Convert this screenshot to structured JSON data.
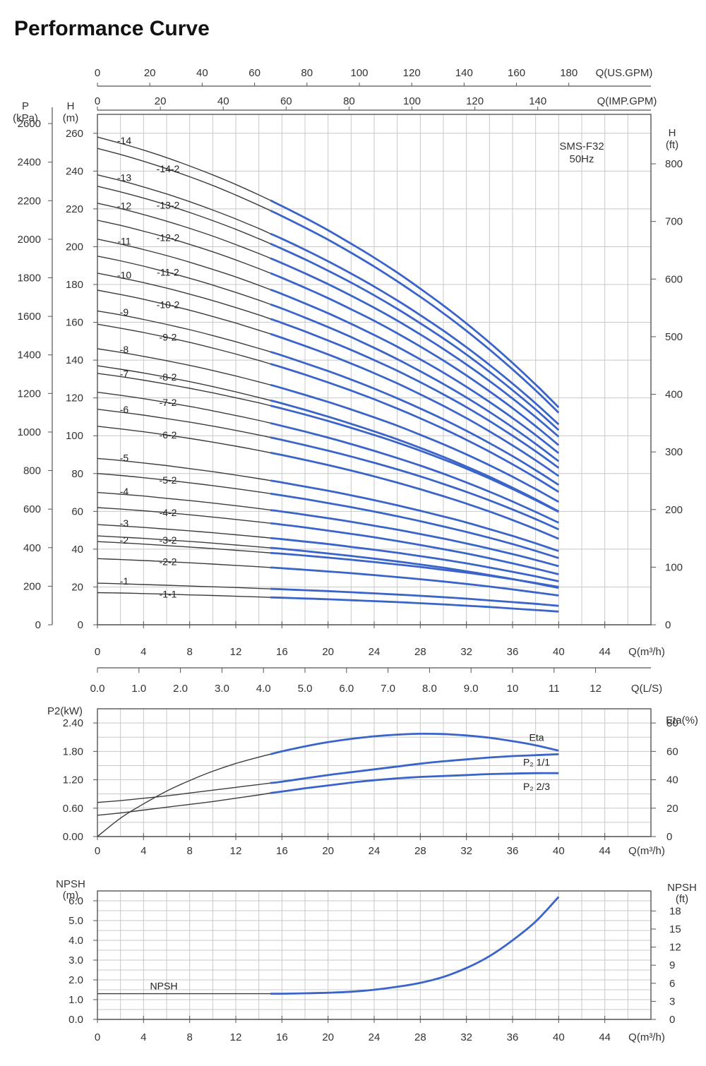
{
  "title": "Performance Curve",
  "colors": {
    "blue": "#3a64c8",
    "gray": "#3c3c3c",
    "grid": "#c8c8c8",
    "axis": "#555555"
  },
  "chart_data": [
    {
      "id": "head",
      "type": "line",
      "model": "SMS-F32",
      "frequency": "50Hz",
      "x_ticks": [
        "0",
        "4",
        "8",
        "12",
        "16",
        "20",
        "24",
        "28",
        "32",
        "36",
        "40",
        "44"
      ],
      "x_unit": "Q(m³/h)",
      "xlim": [
        0,
        48
      ],
      "left_axis_label": [
        "H",
        "(m)"
      ],
      "left_ticks": [
        "0",
        "20",
        "40",
        "60",
        "80",
        "100",
        "120",
        "140",
        "160",
        "180",
        "200",
        "220",
        "240",
        "260"
      ],
      "ylim": [
        0,
        270
      ],
      "p_axis_label": [
        "P",
        "(kPa)"
      ],
      "p_ticks": [
        "0",
        "200",
        "400",
        "600",
        "800",
        "1000",
        "1200",
        "1400",
        "1600",
        "1800",
        "2000",
        "2200",
        "2400",
        "2600"
      ],
      "right_axis_label": [
        "H",
        "(ft)"
      ],
      "right_ticks": [
        "0",
        "100",
        "200",
        "300",
        "400",
        "500",
        "600",
        "700",
        "800"
      ],
      "gpm_us_label": "Q(US.GPM)",
      "gpm_us_ticks": [
        "0",
        "20",
        "40",
        "60",
        "80",
        "100",
        "120",
        "140",
        "160",
        "180"
      ],
      "gpm_imp_label": "Q(IMP.GPM)",
      "gpm_imp_ticks": [
        "0",
        "20",
        "40",
        "60",
        "80",
        "100",
        "120",
        "140"
      ],
      "ls_label": "Q(L/S)",
      "ls_ticks": [
        "0.0",
        "1.0",
        "2.0",
        "3.0",
        "4.0",
        "5.0",
        "6.0",
        "7.0",
        "8.0",
        "9.0",
        "10",
        "11",
        "12"
      ],
      "x": [
        0,
        2,
        4,
        6,
        8,
        10,
        12,
        14,
        15,
        16,
        18,
        20,
        22,
        24,
        26,
        28,
        30,
        32,
        34,
        36,
        38,
        40
      ],
      "blue_from": 15,
      "series": [
        {
          "name": "-1",
          "values": [
            22,
            21.7,
            21.3,
            20.9,
            20.5,
            20.1,
            19.7,
            19.2,
            19,
            18.8,
            18.3,
            17.8,
            17.2,
            16.6,
            16,
            15.3,
            14.6,
            13.8,
            12.9,
            12,
            11.1,
            10
          ]
        },
        {
          "name": "-1-1",
          "values": [
            17,
            16.8,
            16.5,
            16.2,
            15.8,
            15.5,
            15.1,
            14.7,
            14.5,
            14.3,
            13.9,
            13.5,
            13,
            12.5,
            12,
            11.4,
            10.8,
            10.1,
            9.4,
            8.6,
            7.8,
            7
          ]
        },
        {
          "name": "-2",
          "values": [
            44,
            43.4,
            42.7,
            41.9,
            41.1,
            40.3,
            39.4,
            38.5,
            38,
            37.6,
            36.6,
            35.5,
            34.4,
            33.2,
            31.9,
            30.6,
            29.1,
            27.6,
            25.9,
            24.1,
            22.1,
            20
          ]
        },
        {
          "name": "-2-2",
          "values": [
            35,
            34.5,
            34,
            33.4,
            32.8,
            32.1,
            31.4,
            30.7,
            30.3,
            29.9,
            29.1,
            28.2,
            27.3,
            26.3,
            25.2,
            24.1,
            22.9,
            21.6,
            20.2,
            18.7,
            17.1,
            15.5
          ]
        },
        {
          "name": "-3",
          "values": [
            53,
            52.3,
            51.5,
            50.6,
            49.7,
            48.7,
            47.6,
            46.5,
            45.9,
            45.3,
            44,
            42.7,
            41.2,
            39.7,
            38.1,
            36.3,
            34.5,
            32.5,
            30.3,
            28,
            25.6,
            23
          ]
        },
        {
          "name": "-3-2",
          "values": [
            47,
            46.4,
            45.7,
            44.9,
            44.1,
            43.2,
            42.2,
            41.2,
            40.7,
            40.2,
            39,
            37.7,
            36.4,
            35,
            33.5,
            31.9,
            30.2,
            28.3,
            26.3,
            24.2,
            21.9,
            19.5
          ]
        },
        {
          "name": "-4",
          "values": [
            70,
            69.1,
            68.1,
            66.9,
            65.7,
            64.4,
            63,
            61.5,
            60.7,
            59.9,
            58.2,
            56.4,
            54.5,
            52.4,
            50.3,
            48,
            45.6,
            43,
            40.3,
            37.4,
            34.3,
            31
          ]
        },
        {
          "name": "-4-2",
          "values": [
            62,
            61.2,
            60.3,
            59.3,
            58.2,
            57,
            55.7,
            54.4,
            53.7,
            53,
            51.5,
            49.8,
            48.1,
            46.3,
            44.3,
            42.2,
            40,
            37.7,
            35.2,
            32.5,
            29.7,
            26.7
          ]
        },
        {
          "name": "-5",
          "values": [
            88,
            86.9,
            85.6,
            84.2,
            82.6,
            81,
            79.2,
            77.3,
            76.3,
            75.3,
            73.1,
            70.9,
            68.5,
            65.9,
            63.2,
            60.3,
            57.3,
            54.1,
            50.6,
            47,
            43.1,
            39
          ]
        },
        {
          "name": "-5-2",
          "values": [
            80,
            79,
            77.8,
            76.5,
            75.1,
            73.6,
            72,
            70.3,
            69.4,
            68.4,
            66.5,
            64.4,
            62.2,
            59.9,
            57.4,
            54.8,
            52,
            49.1,
            46,
            42.7,
            39.1,
            35.3
          ]
        },
        {
          "name": "-6",
          "values": [
            114,
            112.5,
            110.9,
            109.1,
            107.2,
            105.1,
            102.8,
            100.4,
            99.1,
            97.8,
            95,
            92.1,
            89,
            85.7,
            82.2,
            78.5,
            74.5,
            70.3,
            65.8,
            61,
            55.9,
            50.5
          ]
        },
        {
          "name": "-6-2",
          "values": [
            105,
            103.6,
            102.1,
            100.4,
            98.6,
            96.6,
            94.5,
            92.2,
            91,
            89.8,
            87.2,
            84.5,
            81.6,
            78.5,
            75.2,
            71.7,
            68,
            64.1,
            59.9,
            55.4,
            50.6,
            45.5
          ]
        },
        {
          "name": "-7",
          "values": [
            133,
            131.3,
            129.4,
            127.3,
            125.1,
            122.7,
            120.1,
            117.4,
            115.9,
            114.4,
            111.2,
            107.8,
            104.2,
            100.4,
            96.4,
            92.1,
            87.5,
            82.6,
            77.4,
            71.8,
            65.9,
            59.7
          ]
        },
        {
          "name": "-7-2",
          "values": [
            123,
            121.4,
            119.6,
            117.6,
            115.5,
            113.2,
            110.7,
            108.1,
            106.7,
            105.2,
            102.2,
            99,
            95.6,
            92,
            88.2,
            84.2,
            79.9,
            75.3,
            70.4,
            65.2,
            59.7,
            54
          ]
        },
        {
          "name": "-8",
          "values": [
            146,
            144.1,
            142,
            139.7,
            137.2,
            134.5,
            131.6,
            128.5,
            126.9,
            125.2,
            121.6,
            117.9,
            113.9,
            109.7,
            105.3,
            100.5,
            95.5,
            90.1,
            84.4,
            78.3,
            71.8,
            65
          ]
        },
        {
          "name": "-8-2",
          "values": [
            137,
            135.2,
            133.2,
            131,
            128.6,
            126,
            123.2,
            120.2,
            118.7,
            117.1,
            113.7,
            110.1,
            106.3,
            102.3,
            98.1,
            93.6,
            88.8,
            83.7,
            78.3,
            72.5,
            66.4,
            60
          ]
        },
        {
          "name": "-9",
          "values": [
            166,
            163.9,
            161.5,
            158.9,
            156.1,
            153,
            149.7,
            146.2,
            144.4,
            142.5,
            138.4,
            134.2,
            129.7,
            124.9,
            119.8,
            114.4,
            108.7,
            102.6,
            96.1,
            89.2,
            81.8,
            74
          ]
        },
        {
          "name": "-9-2",
          "values": [
            159,
            156.9,
            154.6,
            152.1,
            149.4,
            146.4,
            143.2,
            139.8,
            138,
            136.2,
            132.3,
            128.2,
            123.9,
            119.3,
            114.4,
            109.2,
            103.7,
            97.8,
            91.6,
            84.9,
            77.8,
            70.3
          ]
        },
        {
          "name": "-10",
          "values": [
            186,
            183.6,
            181,
            178.1,
            174.9,
            171.5,
            167.8,
            163.9,
            161.8,
            159.7,
            155.2,
            150.4,
            145.4,
            140,
            134.4,
            128.3,
            121.9,
            115.1,
            107.8,
            100,
            91.8,
            83
          ]
        },
        {
          "name": "-10-2",
          "values": [
            177,
            174.7,
            172.2,
            169.4,
            166.4,
            163.1,
            159.6,
            155.8,
            153.9,
            151.8,
            147.5,
            143,
            138.2,
            133.1,
            127.7,
            121.9,
            115.8,
            109.3,
            102.3,
            94.9,
            87,
            78.7
          ]
        },
        {
          "name": "-11",
          "values": [
            204,
            201.4,
            198.5,
            195.3,
            191.8,
            188,
            184,
            179.6,
            177.3,
            175,
            170,
            164.8,
            159.2,
            153.3,
            147.1,
            140.4,
            133.4,
            125.9,
            117.9,
            109.4,
            100.4,
            90.8
          ]
        },
        {
          "name": "-11-2",
          "values": [
            195,
            192.5,
            189.7,
            186.6,
            183.3,
            179.7,
            175.8,
            171.7,
            169.5,
            167.3,
            162.5,
            157.5,
            152.2,
            146.5,
            140.5,
            134.1,
            127.4,
            120.2,
            112.6,
            104.4,
            95.7,
            86.5
          ]
        },
        {
          "name": "-12",
          "values": [
            223,
            220.2,
            217,
            213.5,
            209.7,
            205.6,
            201.1,
            196.4,
            193.9,
            191.3,
            185.9,
            180.2,
            174.1,
            167.7,
            160.9,
            153.6,
            145.9,
            137.7,
            129,
            119.7,
            109.9,
            99.5
          ]
        },
        {
          "name": "-12-2",
          "values": [
            214,
            211.3,
            208.2,
            204.9,
            201.2,
            197.3,
            193,
            188.4,
            186,
            183.5,
            178.3,
            172.8,
            166.9,
            160.8,
            154.2,
            147.2,
            139.8,
            131.9,
            123.5,
            114.6,
            105.1,
            95
          ]
        },
        {
          "name": "-13",
          "values": [
            238,
            235,
            231.6,
            227.9,
            223.8,
            219.4,
            214.7,
            209.6,
            206.9,
            204.2,
            198.4,
            192.3,
            185.8,
            178.9,
            171.6,
            163.8,
            155.6,
            146.8,
            137.5,
            127.6,
            117.1,
            106
          ]
        },
        {
          "name": "-13-2",
          "values": [
            232,
            229,
            225.7,
            222.1,
            218.1,
            213.8,
            209.2,
            204.2,
            201.6,
            198.9,
            193.3,
            187.3,
            181,
            174.3,
            167.1,
            159.5,
            151.5,
            142.9,
            133.8,
            124.1,
            113.9,
            103
          ]
        },
        {
          "name": "-14",
          "values": [
            258,
            254.7,
            251.1,
            247.1,
            242.7,
            238,
            232.9,
            227.4,
            224.5,
            221.5,
            215.3,
            208.7,
            201.6,
            194.2,
            186.3,
            177.8,
            168.9,
            159.4,
            149.3,
            138.5,
            127.1,
            115
          ]
        },
        {
          "name": "-14-2",
          "values": [
            252,
            248.8,
            245.2,
            241.3,
            237,
            232.4,
            227.3,
            221.9,
            219.1,
            216.2,
            210.1,
            203.7,
            196.8,
            189.5,
            181.7,
            173.5,
            164.8,
            155.5,
            145.6,
            135.1,
            124,
            112.2
          ]
        }
      ]
    },
    {
      "id": "power",
      "type": "line",
      "left_axis_label": "P2(kW)",
      "left_ticks": [
        "0.00",
        "0.60",
        "1.20",
        "1.80",
        "2.40"
      ],
      "ylim_left": [
        0,
        2.7
      ],
      "right_axis_label": "Eta(%)",
      "right_ticks": [
        "0",
        "20",
        "40",
        "60",
        "80"
      ],
      "ylim_right": [
        0,
        90
      ],
      "x_ticks": [
        "0",
        "4",
        "8",
        "12",
        "16",
        "20",
        "24",
        "28",
        "32",
        "36",
        "40",
        "44"
      ],
      "x_unit": "Q(m³/h)",
      "xlim": [
        0,
        48
      ],
      "x": [
        0,
        2,
        4,
        6,
        8,
        10,
        12,
        14,
        15,
        16,
        18,
        20,
        22,
        24,
        26,
        28,
        30,
        32,
        34,
        36,
        38,
        40
      ],
      "blue_from": 15,
      "series": [
        {
          "name": "Eta",
          "axis": "right",
          "values": [
            0,
            13,
            23,
            32,
            39.5,
            46,
            51.5,
            56,
            58,
            60,
            63.5,
            66.5,
            68.8,
            70.6,
            71.8,
            72.4,
            72.2,
            71.2,
            69.6,
            67.2,
            64.3,
            60.5
          ]
        },
        {
          "name": "P₂ 1/1",
          "axis": "left",
          "values": [
            0.72,
            0.76,
            0.81,
            0.86,
            0.92,
            0.98,
            1.04,
            1.1,
            1.13,
            1.16,
            1.23,
            1.3,
            1.36,
            1.42,
            1.48,
            1.54,
            1.59,
            1.63,
            1.67,
            1.7,
            1.72,
            1.74
          ]
        },
        {
          "name": "P₂ 2/3",
          "axis": "left",
          "values": [
            0.45,
            0.5,
            0.56,
            0.62,
            0.68,
            0.74,
            0.81,
            0.88,
            0.92,
            0.95,
            1.02,
            1.08,
            1.14,
            1.19,
            1.23,
            1.26,
            1.28,
            1.3,
            1.32,
            1.33,
            1.34,
            1.34
          ]
        }
      ]
    },
    {
      "id": "npsh",
      "type": "line",
      "left_axis_label": [
        "NPSH",
        "(m)"
      ],
      "left_ticks": [
        "0.0",
        "1.0",
        "2.0",
        "3.0",
        "4.0",
        "5.0",
        "6.0"
      ],
      "ylim_left": [
        0,
        6.5
      ],
      "right_axis_label": [
        "NPSH",
        "(ft)"
      ],
      "right_ticks": [
        "0",
        "3",
        "6",
        "9",
        "12",
        "15",
        "18"
      ],
      "x_ticks": [
        "0",
        "4",
        "8",
        "12",
        "16",
        "20",
        "24",
        "28",
        "32",
        "36",
        "40",
        "44"
      ],
      "x_unit": "Q(m³/h)",
      "xlim": [
        0,
        48
      ],
      "x": [
        0,
        15,
        16,
        18,
        20,
        22,
        24,
        26,
        28,
        30,
        32,
        34,
        36,
        38,
        40
      ],
      "blue_from": 15,
      "series": [
        {
          "name": "NPSH",
          "values": [
            1.3,
            1.3,
            1.3,
            1.32,
            1.35,
            1.4,
            1.5,
            1.65,
            1.85,
            2.15,
            2.6,
            3.2,
            4.0,
            4.95,
            6.2
          ]
        }
      ]
    }
  ]
}
